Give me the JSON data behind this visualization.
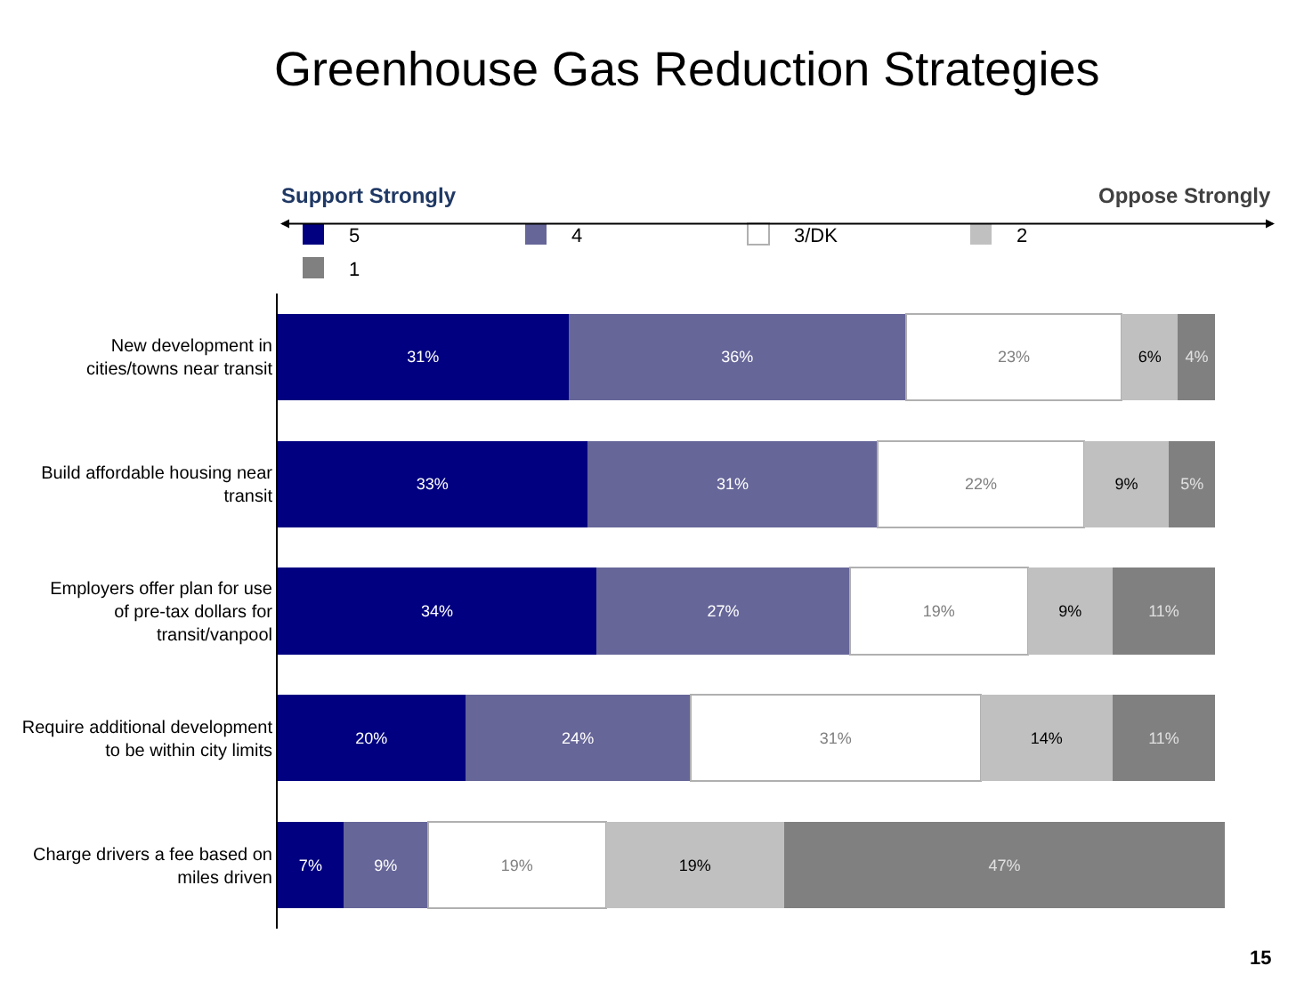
{
  "chart_data": {
    "type": "bar",
    "orientation": "horizontal",
    "stacked": true,
    "title": "Greenhouse Gas Reduction Strategies",
    "categories": [
      "New development in cities/towns near transit",
      "Build affordable housing near transit",
      "Employers offer plan for use of pre-tax dollars for transit/vanpool",
      "Require additional development to be within city limits",
      "Charge drivers a fee based on miles driven"
    ],
    "series": [
      {
        "name": "5",
        "color": "#000080",
        "values": [
          31,
          33,
          34,
          20,
          7
        ],
        "value_labels": [
          "31%",
          "33%",
          "34%",
          "20%",
          "7%"
        ]
      },
      {
        "name": "4",
        "color": "#666699",
        "values": [
          36,
          31,
          27,
          24,
          9
        ],
        "value_labels": [
          "36%",
          "31%",
          "27%",
          "24%",
          "9%"
        ]
      },
      {
        "name": "3/DK",
        "color": "#ffffff",
        "values": [
          23,
          22,
          19,
          31,
          19
        ],
        "value_labels": [
          "23%",
          "22%",
          "19%",
          "31%",
          "19%"
        ]
      },
      {
        "name": "2",
        "color": "#c0c0c0",
        "values": [
          6,
          9,
          9,
          14,
          19
        ],
        "value_labels": [
          "6%",
          "9%",
          "9%",
          "14%",
          "19%"
        ]
      },
      {
        "name": "1",
        "color": "#808080",
        "values": [
          4,
          5,
          11,
          11,
          47
        ],
        "value_labels": [
          "4%",
          "5%",
          "11%",
          "11%",
          "47%"
        ]
      }
    ],
    "legend": "top",
    "tick_labels": "y",
    "annotations": [
      "Support Strongly",
      "Oppose Strongly",
      "15"
    ]
  }
}
